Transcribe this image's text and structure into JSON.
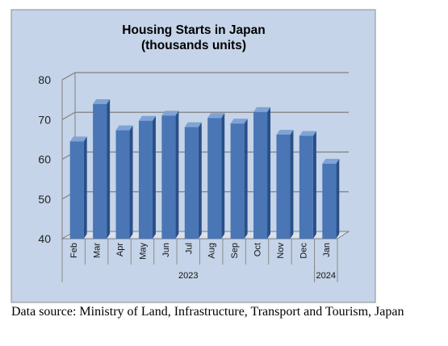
{
  "chart_data": {
    "type": "bar",
    "title_lines": [
      "Housing Starts in Japan",
      "(thousands units)"
    ],
    "categories": [
      "Feb",
      "Mar",
      "Apr",
      "May",
      "Jun",
      "Jul",
      "Aug",
      "Sep",
      "Oct",
      "Nov",
      "Dec",
      "Jan"
    ],
    "values": [
      64.5,
      73.9,
      67.3,
      69.7,
      71.0,
      68.1,
      70.4,
      69.0,
      71.9,
      66.2,
      65.9,
      58.9
    ],
    "groups": [
      {
        "label": "2023",
        "start": 0,
        "end": 10
      },
      {
        "label": "2024",
        "start": 11,
        "end": 11
      }
    ],
    "ylim": [
      40,
      80
    ],
    "yticks": [
      40,
      50,
      60,
      70,
      80
    ],
    "grid": true,
    "colors": {
      "plot_background": "#c5d4e8",
      "bar_front": "#4a76b5",
      "bar_side": "#2a4f88",
      "bar_top": "#7fa3d6",
      "gridline": "#7f7f7f"
    }
  },
  "source_note": "Data source: Ministry of Land, Infrastructure, Transport and Tourism, Japan"
}
